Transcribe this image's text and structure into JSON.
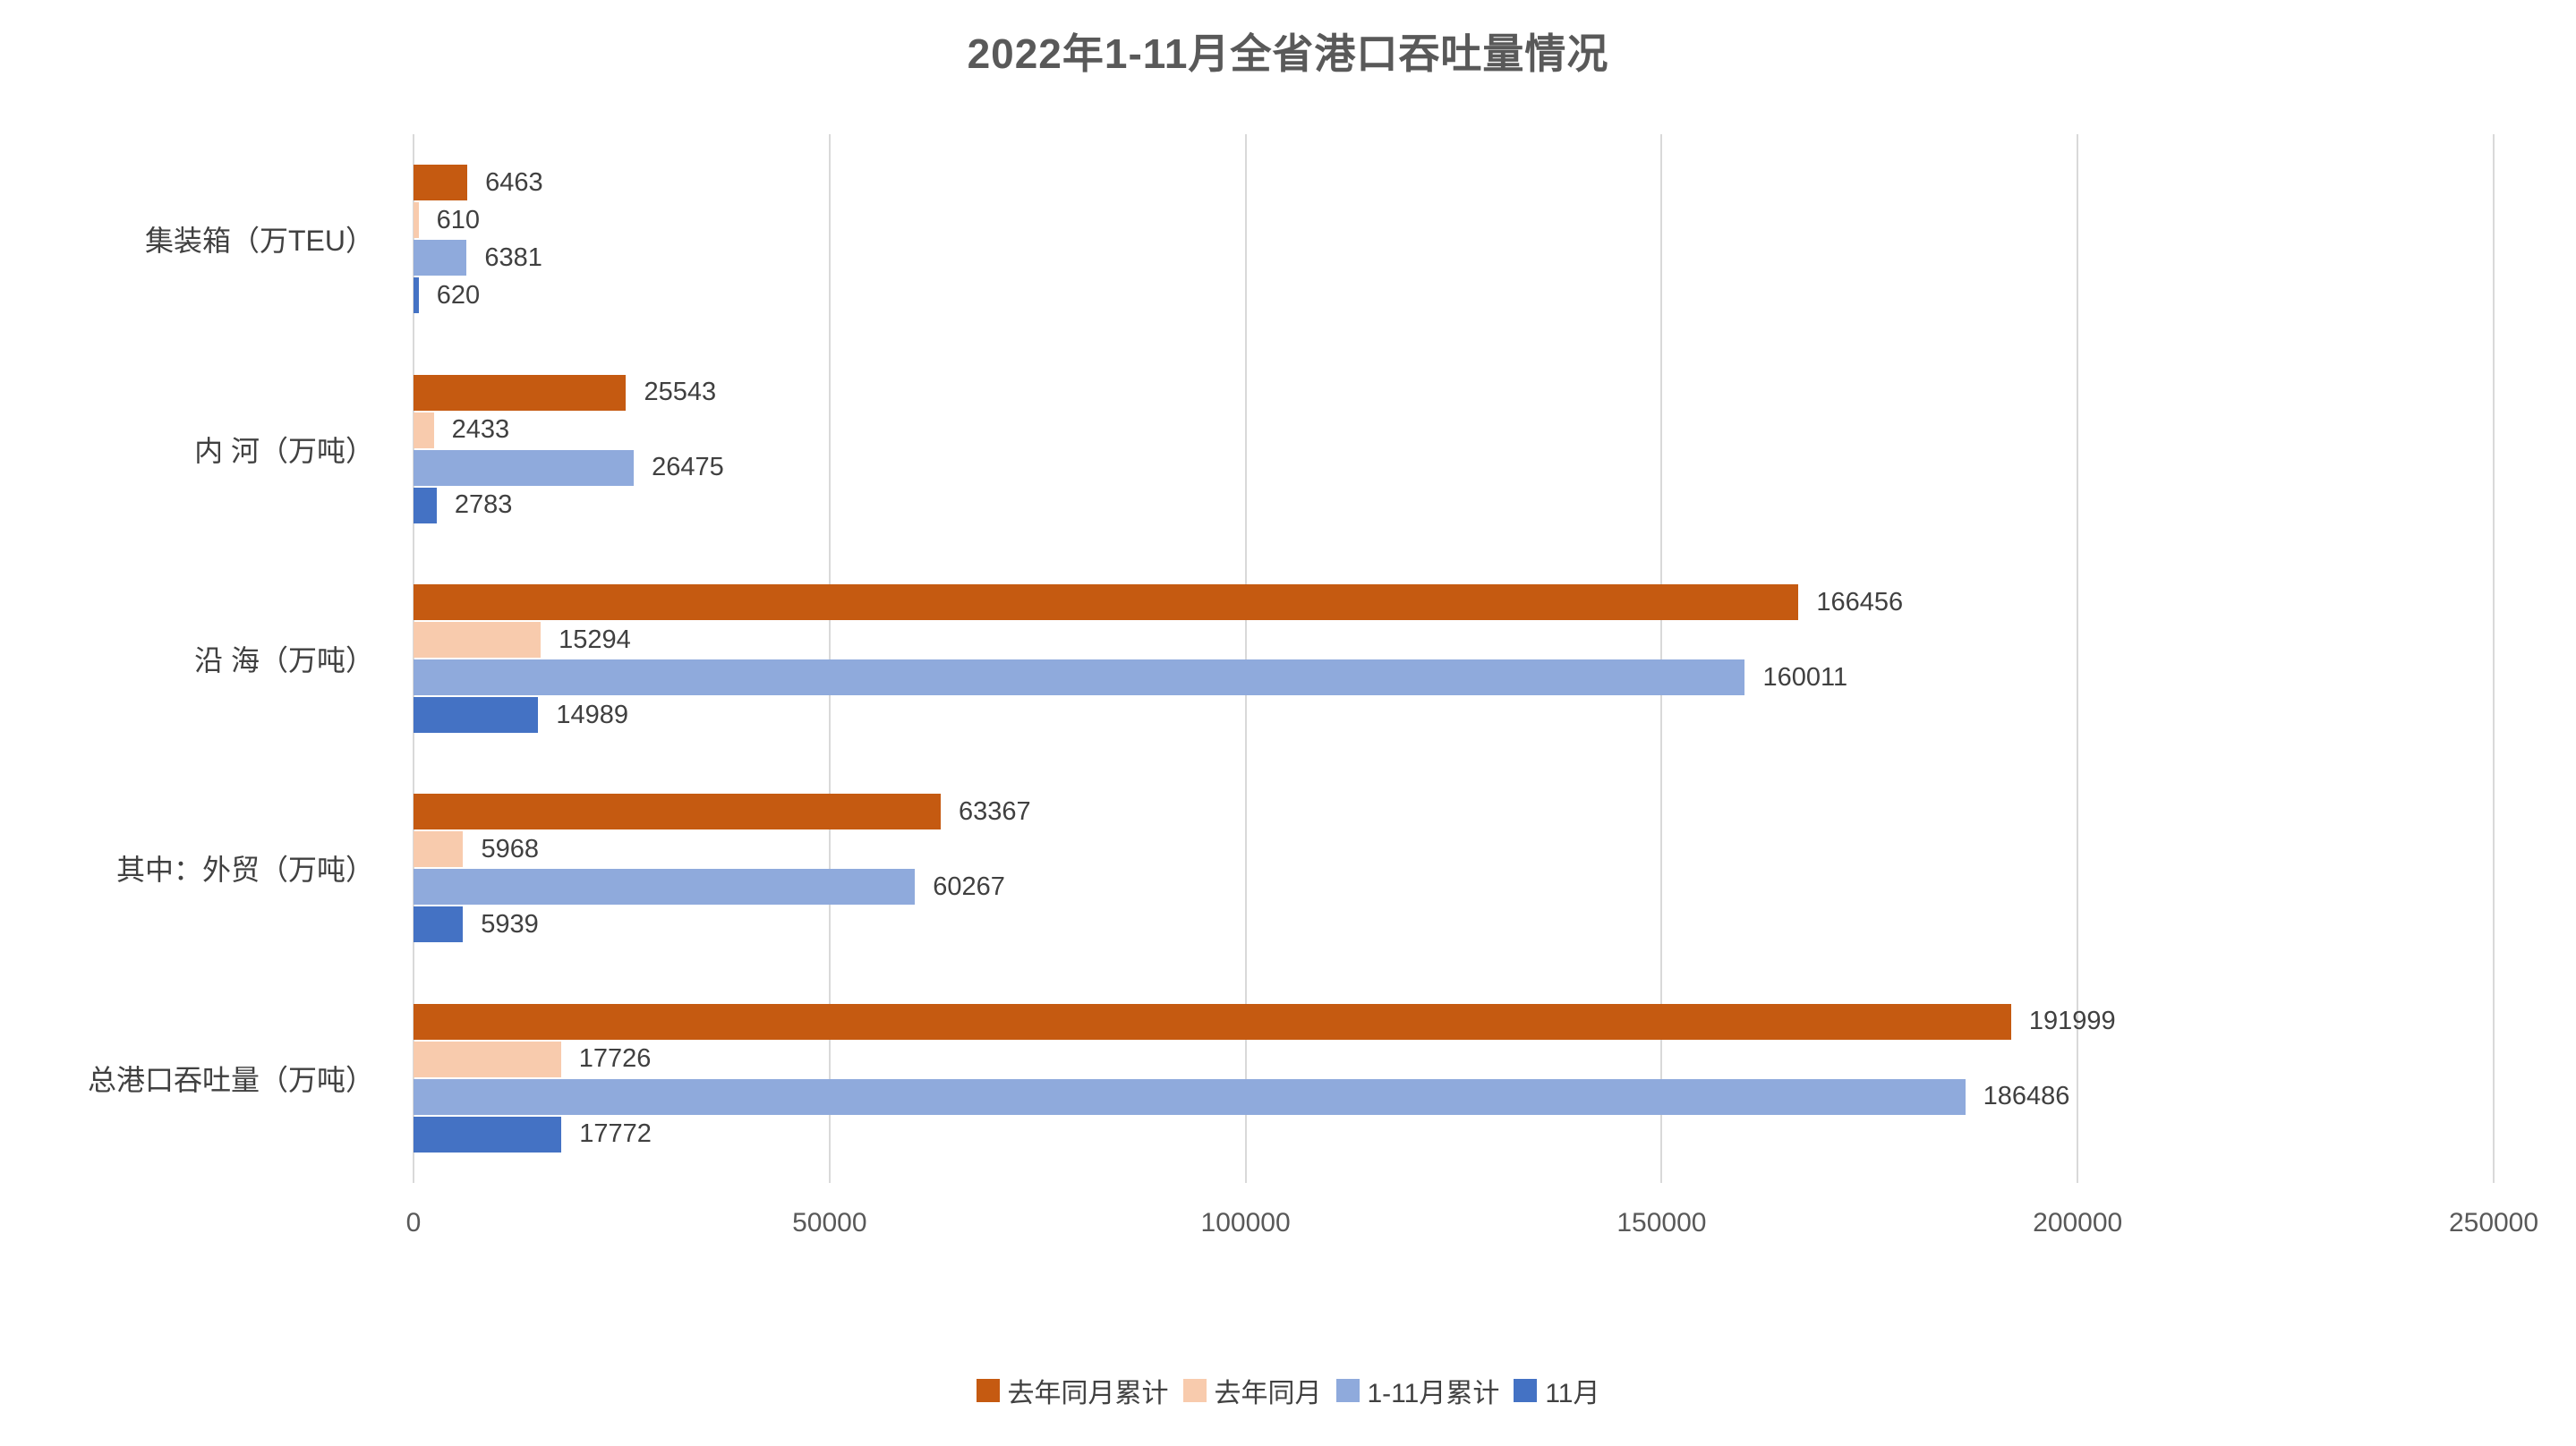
{
  "chart_data": {
    "type": "bar",
    "orientation": "horizontal",
    "title": "2022年1-11月全省港口吞吐量情况",
    "categories": [
      "集装箱（万TEU）",
      "内 河（万吨）",
      "沿 海（万吨）",
      "其中：外贸（万吨）",
      "总港口吞吐量（万吨）"
    ],
    "series": [
      {
        "name": "去年同月累计",
        "color": "#C55A11",
        "values": [
          6463,
          25543,
          166456,
          63367,
          191999
        ]
      },
      {
        "name": "去年同月",
        "color": "#F8CBAD",
        "values": [
          610,
          2433,
          15294,
          5968,
          17726
        ]
      },
      {
        "name": "1-11月累计",
        "color": "#8FAADC",
        "values": [
          6381,
          26475,
          160011,
          60267,
          186486
        ]
      },
      {
        "name": "11月",
        "color": "#4472C4",
        "values": [
          620,
          2783,
          14989,
          5939,
          17772
        ]
      }
    ],
    "x_axis": {
      "min": 0,
      "max": 250000,
      "tick_step": 50000,
      "ticks": [
        0,
        50000,
        100000,
        150000,
        200000,
        250000
      ]
    },
    "legend_position": "bottom",
    "grid": "vertical-only",
    "gridline_color": "#D9D9D9",
    "data_labels": true,
    "text_colors": {
      "title": "#595959",
      "ticks": "#595959",
      "labels": "#404040"
    },
    "background": "#ffffff"
  }
}
